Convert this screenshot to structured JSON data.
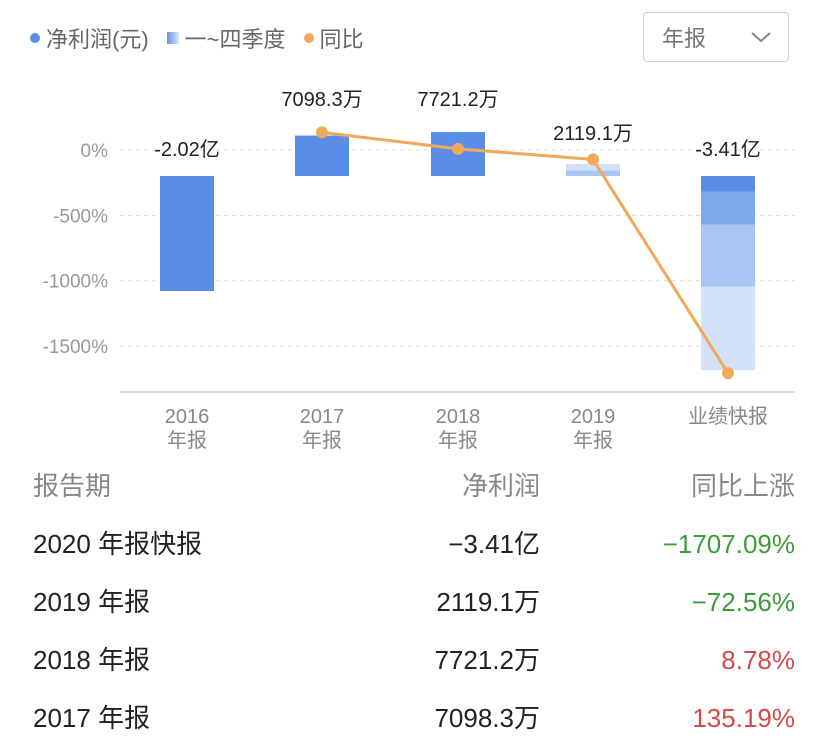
{
  "legend": {
    "items": [
      {
        "label": "净利润(元)",
        "color": "#5a8ee6",
        "marker": "dot"
      },
      {
        "label": "一~四季度",
        "marker": "gradient-square"
      },
      {
        "label": "同比",
        "color": "#f0a85b",
        "marker": "dot"
      }
    ]
  },
  "period_select": {
    "value": "年报",
    "icon": "chevron-down-icon"
  },
  "chart_data": {
    "type": "bar",
    "categories": [
      "2016\n年报",
      "2017\n年报",
      "2018\n年报",
      "2019\n年报",
      "业绩快报"
    ],
    "y_ticks": [
      0,
      -500,
      -1000,
      -1500
    ],
    "y_tick_labels": [
      "0%",
      "-500%",
      "-1000%",
      "-1500%"
    ],
    "ylim": [
      -1880,
      250
    ],
    "grid": true,
    "bar_values_display": [
      "-2.02亿",
      "7098.3万",
      "7721.2万",
      "2119.1万",
      "-3.41亿"
    ],
    "net_profit_yuan": [
      -202000000,
      70983000,
      77212000,
      21191000,
      -341000000
    ],
    "quarter_colors": [
      "#5a8ee6",
      "#7da8ec",
      "#a9c6f3",
      "#d3e1f8"
    ],
    "series": [
      {
        "name": "同比",
        "type": "line",
        "color": "#f0a85b",
        "values": [
          null,
          135.19,
          8.78,
          -72.56,
          -1707.09
        ]
      }
    ]
  },
  "table": {
    "headers": [
      "报告期",
      "净利润",
      "同比上涨"
    ],
    "rows": [
      {
        "period": "2020 年报快报",
        "profit": "−3.41亿",
        "yoy": "−1707.09%",
        "trend": "down"
      },
      {
        "period": "2019 年报",
        "profit": "2119.1万",
        "yoy": "−72.56%",
        "trend": "down"
      },
      {
        "period": "2018 年报",
        "profit": "7721.2万",
        "yoy": "8.78%",
        "trend": "up"
      },
      {
        "period": "2017 年报",
        "profit": "7098.3万",
        "yoy": "135.19%",
        "trend": "up"
      }
    ]
  },
  "colors": {
    "up": "#d54a4a",
    "down": "#3f9b3a"
  }
}
